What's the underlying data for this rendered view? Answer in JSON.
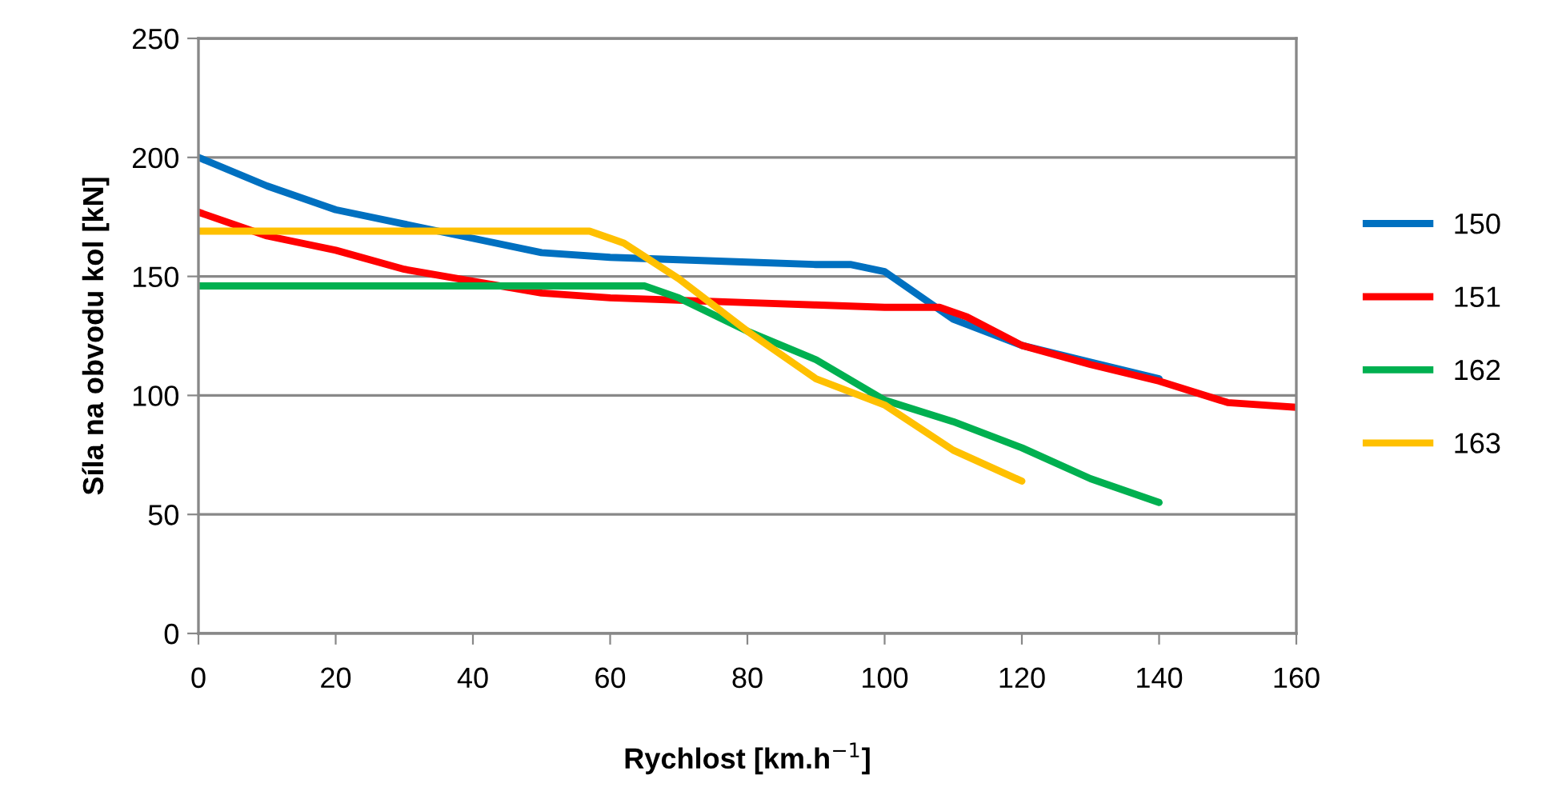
{
  "chart_data": {
    "type": "line",
    "xlabel": "Rychlost [km.h$^{−1}$]",
    "ylabel": "Síla na obvodu kol [kN]",
    "xlim": [
      0,
      160
    ],
    "xticks": [
      0,
      20,
      40,
      60,
      80,
      100,
      120,
      140,
      160
    ],
    "ylim": [
      0,
      250
    ],
    "yticks": [
      0,
      50,
      100,
      150,
      200,
      250
    ],
    "grid": "y",
    "legend": "right",
    "marker": "none",
    "line_style": "solid",
    "series": [
      {
        "name": "150",
        "color": "#0070c0",
        "x": [
          0,
          10,
          20,
          30,
          40,
          50,
          60,
          70,
          80,
          90,
          95,
          100,
          105,
          110,
          120,
          130,
          140
        ],
        "values": [
          200,
          188,
          178,
          172,
          166,
          160,
          158,
          157,
          156,
          155,
          155,
          152,
          142,
          132,
          121,
          114,
          107
        ]
      },
      {
        "name": "151",
        "color": "#ff0000",
        "x": [
          0,
          10,
          20,
          30,
          40,
          50,
          60,
          70,
          80,
          90,
          100,
          108,
          112,
          120,
          130,
          140,
          150,
          160
        ],
        "values": [
          177,
          167,
          161,
          153,
          148,
          143,
          141,
          140,
          139,
          138,
          137,
          137,
          133,
          121,
          113,
          106,
          97,
          95
        ]
      },
      {
        "name": "162",
        "color": "#00b050",
        "x": [
          0,
          20,
          40,
          60,
          65,
          70,
          80,
          90,
          100,
          110,
          120,
          130,
          140
        ],
        "values": [
          146,
          146,
          146,
          146,
          146,
          141,
          127,
          115,
          98,
          89,
          78,
          65,
          55
        ]
      },
      {
        "name": "163",
        "color": "#ffc000",
        "x": [
          0,
          20,
          40,
          50,
          57,
          62,
          70,
          80,
          90,
          100,
          110,
          120
        ],
        "values": [
          169,
          169,
          169,
          169,
          169,
          164,
          149,
          127,
          107,
          96,
          77,
          64
        ]
      }
    ]
  }
}
